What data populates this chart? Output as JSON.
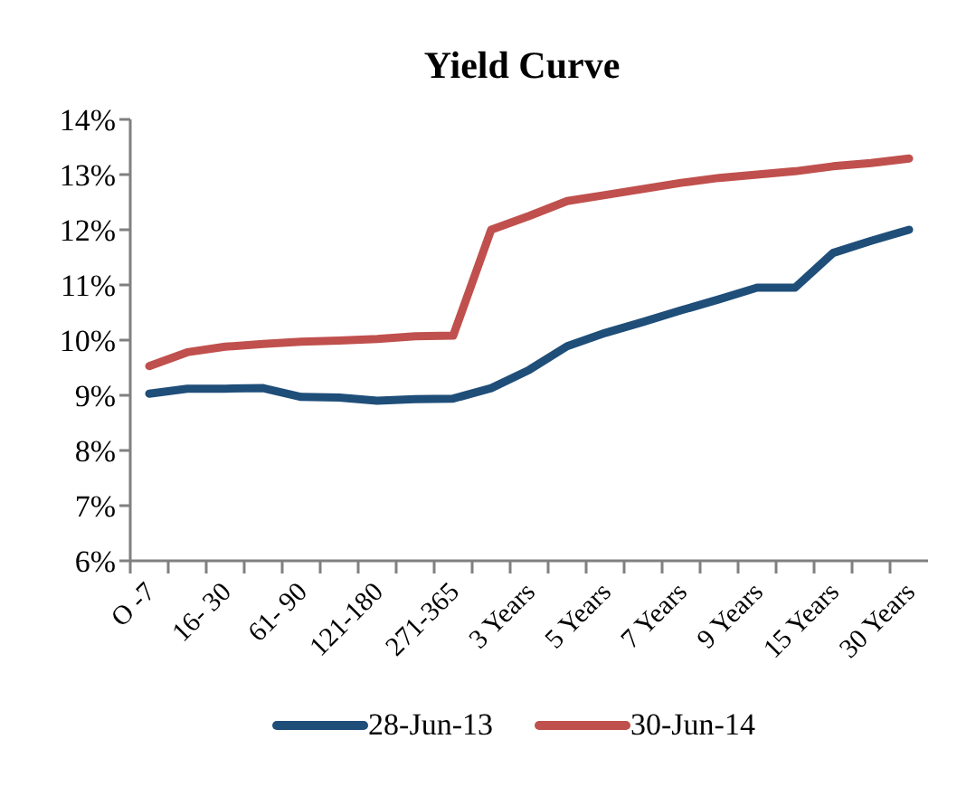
{
  "chart_data": {
    "type": "line",
    "title": "Yield Curve",
    "categories": [
      "O -7",
      null,
      "16- 30",
      null,
      "61- 90",
      null,
      "121-180",
      null,
      "271-365",
      null,
      "3 Years",
      null,
      "5 Years",
      null,
      "7 Years",
      null,
      "9 Years",
      null,
      "15 Years",
      null,
      "30 Years"
    ],
    "series": [
      {
        "name": "28-Jun-13",
        "color": "#1f4e79",
        "values": [
          9.03,
          9.12,
          9.12,
          9.13,
          8.97,
          8.96,
          8.9,
          8.93,
          8.94,
          9.13,
          9.46,
          9.89,
          10.13,
          10.33,
          10.54,
          10.74,
          10.95,
          10.95,
          11.58,
          11.8,
          12.0
        ]
      },
      {
        "name": "30-Jun-14",
        "color": "#c0504d",
        "values": [
          9.53,
          9.78,
          9.88,
          9.93,
          9.97,
          9.99,
          10.02,
          10.07,
          10.08,
          12.0,
          12.25,
          12.52,
          12.63,
          12.74,
          12.85,
          12.94,
          13.0,
          13.06,
          13.15,
          13.21,
          13.29
        ]
      }
    ],
    "ylim": [
      6,
      14
    ],
    "yticks": [
      {
        "value": 6,
        "label": "6%"
      },
      {
        "value": 7,
        "label": "7%"
      },
      {
        "value": 8,
        "label": "8%"
      },
      {
        "value": 9,
        "label": "9%"
      },
      {
        "value": 10,
        "label": "10%"
      },
      {
        "value": 11,
        "label": "11%"
      },
      {
        "value": 12,
        "label": "12%"
      },
      {
        "value": 13,
        "label": "13%"
      },
      {
        "value": 14,
        "label": "14%"
      }
    ],
    "grid": false,
    "legend": "bottom",
    "marker": "none",
    "line_style": "solid"
  }
}
